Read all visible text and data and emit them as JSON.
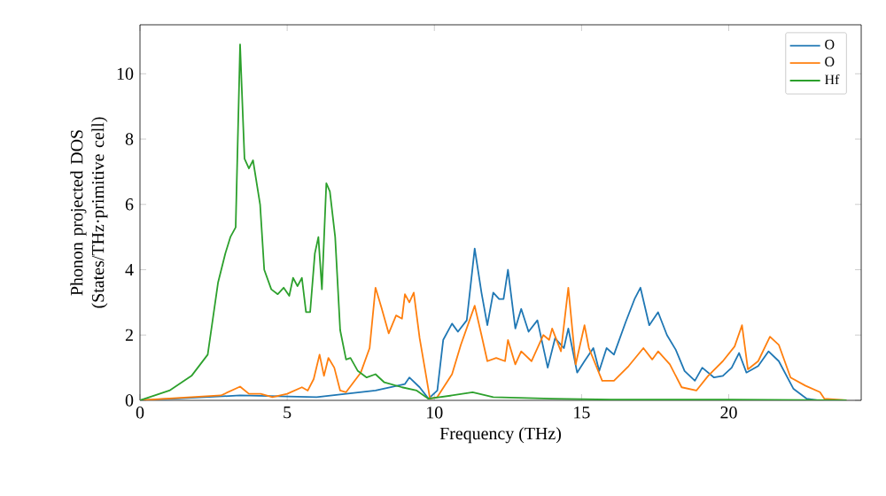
{
  "chart_data": {
    "type": "line",
    "xlabel": "Frequency (THz)",
    "ylabel": "Phonon projected DOS (States/THz·primitive cell)",
    "xlim": [
      0,
      24.5
    ],
    "ylim": [
      0,
      11.5
    ],
    "xticks": [
      0,
      5,
      10,
      15,
      20
    ],
    "yticks": [
      0,
      2,
      4,
      6,
      8,
      10
    ],
    "legend": "top right",
    "grid": false,
    "series": [
      {
        "name": "O",
        "color": "#1f77b4",
        "x": [
          0,
          3.4,
          6,
          8,
          9,
          9.15,
          9.5,
          9.8,
          10.1,
          10.3,
          10.6,
          10.8,
          11.1,
          11.37,
          11.6,
          11.8,
          12.0,
          12.2,
          12.35,
          12.5,
          12.75,
          12.95,
          13.2,
          13.5,
          13.85,
          14.1,
          14.4,
          14.55,
          14.85,
          15.1,
          15.4,
          15.6,
          15.85,
          16.1,
          16.5,
          16.8,
          17.0,
          17.3,
          17.6,
          17.9,
          18.2,
          18.5,
          18.85,
          19.1,
          19.5,
          19.8,
          20.1,
          20.35,
          20.6,
          21.0,
          21.35,
          21.7,
          22.2,
          22.65,
          23,
          24
        ],
        "values": [
          0,
          0.15,
          0.1,
          0.3,
          0.5,
          0.7,
          0.4,
          0.05,
          0.3,
          1.85,
          2.35,
          2.1,
          2.45,
          4.65,
          3.3,
          2.3,
          3.3,
          3.1,
          3.1,
          4.0,
          2.2,
          2.8,
          2.1,
          2.45,
          1.0,
          1.9,
          1.6,
          2.2,
          0.85,
          1.2,
          1.6,
          0.9,
          1.6,
          1.4,
          2.4,
          3.1,
          3.45,
          2.3,
          2.7,
          2.0,
          1.55,
          0.9,
          0.6,
          1.0,
          0.7,
          0.75,
          1.0,
          1.45,
          0.85,
          1.05,
          1.5,
          1.2,
          0.35,
          0.05,
          0,
          0
        ]
      },
      {
        "name": "O",
        "color": "#ff7f0e",
        "x": [
          0,
          1.75,
          2.75,
          3.4,
          3.7,
          4.1,
          4.5,
          5.0,
          5.5,
          5.7,
          5.9,
          6.1,
          6.25,
          6.4,
          6.6,
          6.8,
          7.0,
          7.5,
          7.8,
          8.0,
          8.2,
          8.45,
          8.7,
          8.9,
          9.0,
          9.15,
          9.3,
          9.5,
          9.7,
          9.85,
          10.1,
          10.6,
          10.9,
          11.37,
          11.6,
          11.8,
          12.1,
          12.4,
          12.5,
          12.75,
          12.95,
          13.3,
          13.7,
          13.9,
          14.0,
          14.3,
          14.55,
          14.8,
          15.1,
          15.25,
          15.7,
          16.1,
          16.6,
          17.1,
          17.4,
          17.6,
          18.0,
          18.4,
          18.9,
          19.3,
          19.8,
          20.2,
          20.45,
          20.65,
          21.0,
          21.4,
          21.7,
          22.1,
          22.6,
          23.1,
          23.25,
          24
        ],
        "values": [
          0,
          0.1,
          0.15,
          0.42,
          0.2,
          0.2,
          0.1,
          0.2,
          0.4,
          0.3,
          0.65,
          1.4,
          0.75,
          1.3,
          1.0,
          0.3,
          0.25,
          0.85,
          1.6,
          3.45,
          2.85,
          2.05,
          2.6,
          2.5,
          3.25,
          3.0,
          3.3,
          1.9,
          0.85,
          0.05,
          0.1,
          0.8,
          1.7,
          2.9,
          2.0,
          1.2,
          1.3,
          1.2,
          1.85,
          1.1,
          1.5,
          1.2,
          2.0,
          1.85,
          2.2,
          1.5,
          3.45,
          1.1,
          2.3,
          1.6,
          0.6,
          0.6,
          1.05,
          1.6,
          1.25,
          1.5,
          1.1,
          0.4,
          0.3,
          0.75,
          1.2,
          1.65,
          2.3,
          0.95,
          1.2,
          1.95,
          1.7,
          0.7,
          0.45,
          0.25,
          0.05,
          0
        ]
      },
      {
        "name": "Hf",
        "color": "#2ca02c",
        "x": [
          0,
          1.0,
          1.75,
          2.3,
          2.65,
          2.9,
          3.07,
          3.25,
          3.4,
          3.55,
          3.7,
          3.84,
          4.08,
          4.22,
          4.46,
          4.68,
          4.88,
          5.07,
          5.2,
          5.35,
          5.5,
          5.64,
          5.78,
          5.94,
          6.06,
          6.18,
          6.33,
          6.45,
          6.63,
          6.8,
          7.0,
          7.15,
          7.4,
          7.7,
          8.0,
          8.3,
          8.9,
          9.4,
          9.8,
          10.6,
          11.3,
          12,
          14,
          16,
          20,
          24
        ],
        "values": [
          0,
          0.3,
          0.75,
          1.4,
          3.6,
          4.5,
          5.0,
          5.3,
          10.9,
          7.4,
          7.1,
          7.35,
          6.0,
          4.0,
          3.4,
          3.25,
          3.45,
          3.2,
          3.75,
          3.5,
          3.75,
          2.7,
          2.7,
          4.5,
          5.0,
          3.4,
          6.65,
          6.4,
          5.0,
          2.15,
          1.25,
          1.3,
          0.9,
          0.7,
          0.8,
          0.55,
          0.4,
          0.3,
          0.05,
          0.15,
          0.25,
          0.1,
          0.05,
          0.02,
          0.02,
          0
        ]
      }
    ]
  }
}
